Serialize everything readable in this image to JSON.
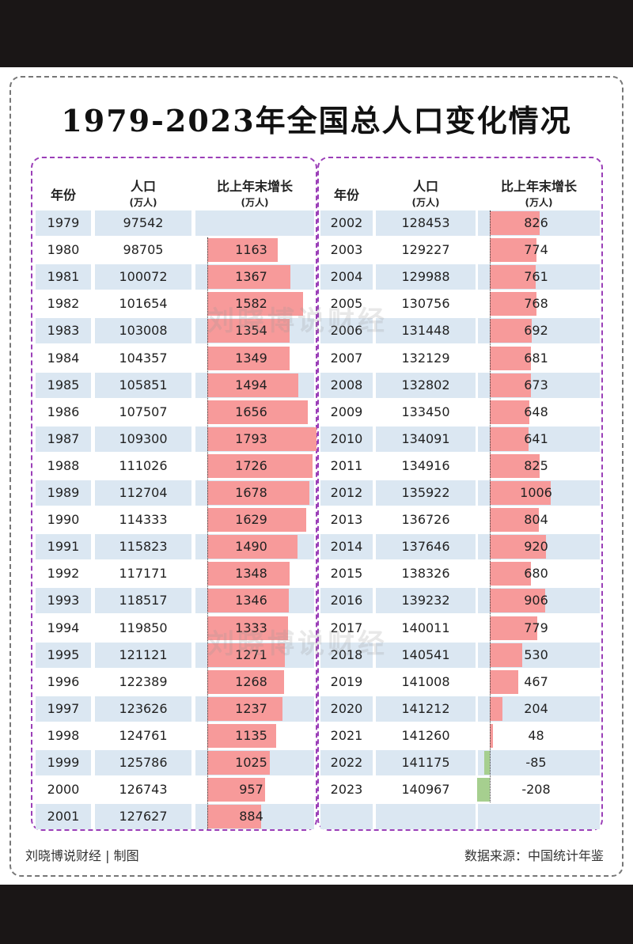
{
  "title": "1979-2023年全国总人口变化情况",
  "headers": {
    "year": "年份",
    "population": "人口",
    "population_unit": "(万人)",
    "growth": "比上年末增长",
    "growth_unit": "(万人)"
  },
  "watermark": "刘晓博说财经",
  "footer": {
    "credit": "刘晓博说财经 | 制图",
    "source": "数据来源：中国统计年鉴"
  },
  "colors": {
    "positive": "#f79a9a",
    "negative": "#a6cf8f",
    "zebra": "#dbe7f2",
    "panel_border": "#9b3fb8"
  },
  "chart_data": {
    "type": "table",
    "columns": [
      "年份",
      "人口(万人)",
      "比上年末增长(万人)"
    ],
    "rows": [
      {
        "year": "1979",
        "population": "97542",
        "growth": null
      },
      {
        "year": "1980",
        "population": "98705",
        "growth": 1163
      },
      {
        "year": "1981",
        "population": "100072",
        "growth": 1367
      },
      {
        "year": "1982",
        "population": "101654",
        "growth": 1582
      },
      {
        "year": "1983",
        "population": "103008",
        "growth": 1354
      },
      {
        "year": "1984",
        "population": "104357",
        "growth": 1349
      },
      {
        "year": "1985",
        "population": "105851",
        "growth": 1494
      },
      {
        "year": "1986",
        "population": "107507",
        "growth": 1656
      },
      {
        "year": "1987",
        "population": "109300",
        "growth": 1793
      },
      {
        "year": "1988",
        "population": "111026",
        "growth": 1726
      },
      {
        "year": "1989",
        "population": "112704",
        "growth": 1678
      },
      {
        "year": "1990",
        "population": "114333",
        "growth": 1629
      },
      {
        "year": "1991",
        "population": "115823",
        "growth": 1490
      },
      {
        "year": "1992",
        "population": "117171",
        "growth": 1348
      },
      {
        "year": "1993",
        "population": "118517",
        "growth": 1346
      },
      {
        "year": "1994",
        "population": "119850",
        "growth": 1333
      },
      {
        "year": "1995",
        "population": "121121",
        "growth": 1271
      },
      {
        "year": "1996",
        "population": "122389",
        "growth": 1268
      },
      {
        "year": "1997",
        "population": "123626",
        "growth": 1237
      },
      {
        "year": "1998",
        "population": "124761",
        "growth": 1135
      },
      {
        "year": "1999",
        "population": "125786",
        "growth": 1025
      },
      {
        "year": "2000",
        "population": "126743",
        "growth": 957
      },
      {
        "year": "2001",
        "population": "127627",
        "growth": 884
      },
      {
        "year": "2002",
        "population": "128453",
        "growth": 826
      },
      {
        "year": "2003",
        "population": "129227",
        "growth": 774
      },
      {
        "year": "2004",
        "population": "129988",
        "growth": 761
      },
      {
        "year": "2005",
        "population": "130756",
        "growth": 768
      },
      {
        "year": "2006",
        "population": "131448",
        "growth": 692
      },
      {
        "year": "2007",
        "population": "132129",
        "growth": 681
      },
      {
        "year": "2008",
        "population": "132802",
        "growth": 673
      },
      {
        "year": "2009",
        "population": "133450",
        "growth": 648
      },
      {
        "year": "2010",
        "population": "134091",
        "growth": 641
      },
      {
        "year": "2011",
        "population": "134916",
        "growth": 825
      },
      {
        "year": "2012",
        "population": "135922",
        "growth": 1006
      },
      {
        "year": "2013",
        "population": "136726",
        "growth": 804
      },
      {
        "year": "2014",
        "population": "137646",
        "growth": 920
      },
      {
        "year": "2015",
        "population": "138326",
        "growth": 680
      },
      {
        "year": "2016",
        "population": "139232",
        "growth": 906
      },
      {
        "year": "2017",
        "population": "140011",
        "growth": 779
      },
      {
        "year": "2018",
        "population": "140541",
        "growth": 530
      },
      {
        "year": "2019",
        "population": "141008",
        "growth": 467
      },
      {
        "year": "2020",
        "population": "141212",
        "growth": 204
      },
      {
        "year": "2021",
        "population": "141260",
        "growth": 48
      },
      {
        "year": "2022",
        "population": "141175",
        "growth": -85
      },
      {
        "year": "2023",
        "population": "140967",
        "growth": -208
      }
    ]
  }
}
